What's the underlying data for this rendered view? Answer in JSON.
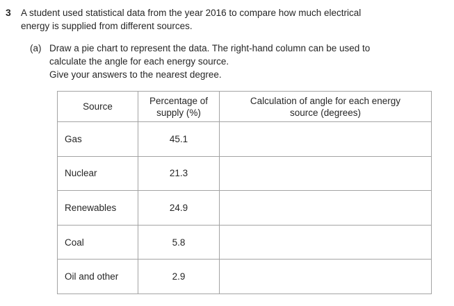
{
  "question": {
    "number": "3",
    "lines": [
      "A student used statistical data from the year 2016 to compare how much electrical",
      "energy is supplied from different sources."
    ]
  },
  "sub_question": {
    "label": "(a)",
    "lines": [
      "Draw a pie chart to represent the data. The right-hand column can be used to",
      "calculate the angle for each energy source.",
      "Give your answers to the nearest degree."
    ]
  },
  "table": {
    "headers": {
      "source": "Source",
      "percentage_line1": "Percentage of",
      "percentage_line2": "supply (%)",
      "calculation_line1": "Calculation of angle for each energy",
      "calculation_line2": "source (degrees)"
    },
    "rows": [
      {
        "source": "Gas",
        "percentage": "45.1",
        "calculation": ""
      },
      {
        "source": "Nuclear",
        "percentage": "21.3",
        "calculation": ""
      },
      {
        "source": "Renewables",
        "percentage": "24.9",
        "calculation": ""
      },
      {
        "source": "Coal",
        "percentage": "5.8",
        "calculation": ""
      },
      {
        "source": "Oil and other",
        "percentage": "2.9",
        "calculation": ""
      }
    ]
  },
  "colors": {
    "text": "#262626",
    "table_border": "#a3a3a3",
    "background": "#ffffff"
  }
}
